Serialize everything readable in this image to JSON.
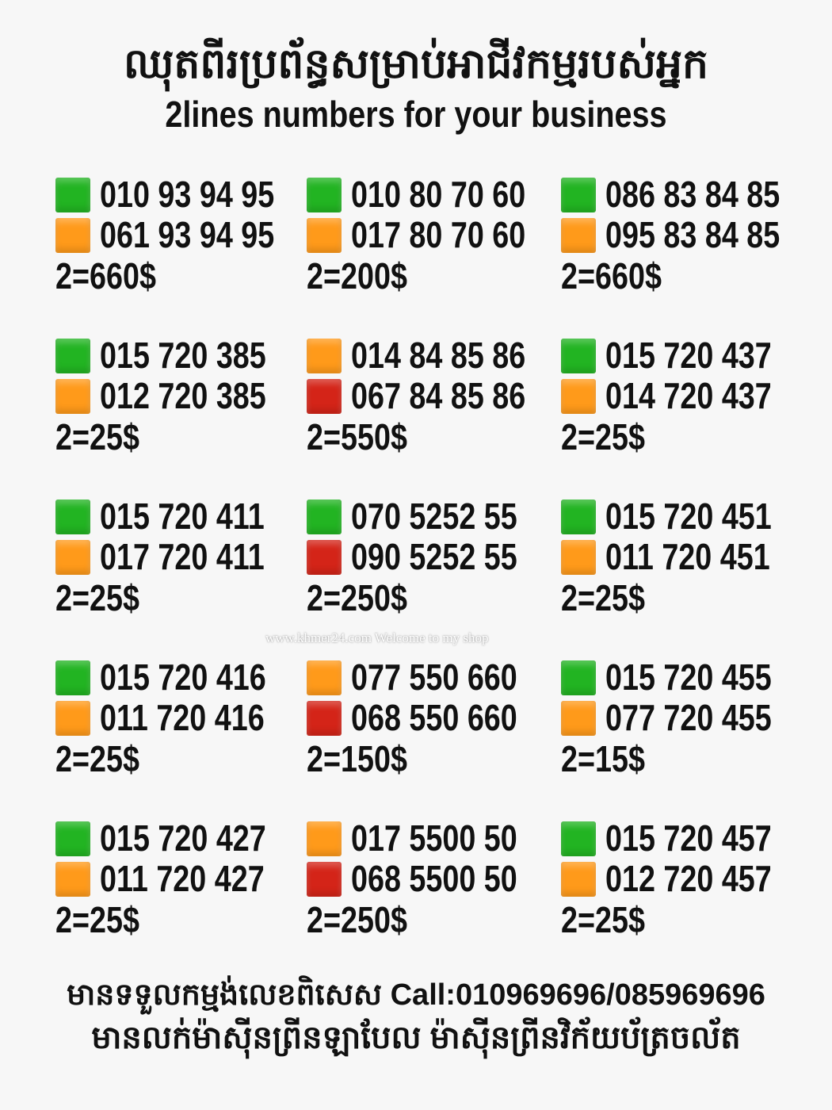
{
  "header": {
    "title_km": "ឈុតពីរប្រព័ន្ធសម្រាប់អាជីវកម្មរបស់អ្នក",
    "title_en": "2lines numbers for your business"
  },
  "colors": {
    "green": "#22b422",
    "orange": "#ff9a1a",
    "red": "#d42418"
  },
  "offers": [
    {
      "lines": [
        {
          "color": "green",
          "number": "010 93 94 95"
        },
        {
          "color": "orange",
          "number": "061 93 94 95"
        }
      ],
      "price": "2=660$"
    },
    {
      "lines": [
        {
          "color": "green",
          "number": "010 80 70 60"
        },
        {
          "color": "orange",
          "number": "017 80 70 60"
        }
      ],
      "price": "2=200$"
    },
    {
      "lines": [
        {
          "color": "green",
          "number": "086 83 84 85"
        },
        {
          "color": "orange",
          "number": "095 83 84 85"
        }
      ],
      "price": "2=660$"
    },
    {
      "lines": [
        {
          "color": "green",
          "number": "015 720 385"
        },
        {
          "color": "orange",
          "number": "012 720 385"
        }
      ],
      "price": "2=25$"
    },
    {
      "lines": [
        {
          "color": "orange",
          "number": "014 84 85 86"
        },
        {
          "color": "red",
          "number": "067 84 85 86"
        }
      ],
      "price": "2=550$"
    },
    {
      "lines": [
        {
          "color": "green",
          "number": "015 720 437"
        },
        {
          "color": "orange",
          "number": "014 720 437"
        }
      ],
      "price": "2=25$"
    },
    {
      "lines": [
        {
          "color": "green",
          "number": "015 720 411"
        },
        {
          "color": "orange",
          "number": "017 720 411"
        }
      ],
      "price": "2=25$"
    },
    {
      "lines": [
        {
          "color": "green",
          "number": "070 5252 55"
        },
        {
          "color": "red",
          "number": "090 5252 55"
        }
      ],
      "price": "2=250$"
    },
    {
      "lines": [
        {
          "color": "green",
          "number": "015 720 451"
        },
        {
          "color": "orange",
          "number": "011 720 451"
        }
      ],
      "price": "2=25$"
    },
    {
      "lines": [
        {
          "color": "green",
          "number": "015 720 416"
        },
        {
          "color": "orange",
          "number": "011 720 416"
        }
      ],
      "price": "2=25$"
    },
    {
      "lines": [
        {
          "color": "orange",
          "number": "077 550 660"
        },
        {
          "color": "red",
          "number": "068 550 660"
        }
      ],
      "price": "2=150$"
    },
    {
      "lines": [
        {
          "color": "green",
          "number": "015 720 455"
        },
        {
          "color": "orange",
          "number": "077 720 455"
        }
      ],
      "price": "2=15$"
    },
    {
      "lines": [
        {
          "color": "green",
          "number": "015 720 427"
        },
        {
          "color": "orange",
          "number": "011 720 427"
        }
      ],
      "price": "2=25$"
    },
    {
      "lines": [
        {
          "color": "orange",
          "number": "017 5500 50"
        },
        {
          "color": "red",
          "number": "068 5500 50"
        }
      ],
      "price": "2=250$"
    },
    {
      "lines": [
        {
          "color": "green",
          "number": "015 720 457"
        },
        {
          "color": "orange",
          "number": "012 720 457"
        }
      ],
      "price": "2=25$"
    }
  ],
  "watermark": "www.khmer24.com Welcome to my shop",
  "footer": {
    "line1": "មានទទួលកម្មង់លេខពិសេស Call:010969696/085969696",
    "line2": "មានលក់ម៉ាស៊ីនព្រីនឡាបែល ម៉ាស៊ីនព្រីនវិក័យប័ត្រចល័ត"
  }
}
